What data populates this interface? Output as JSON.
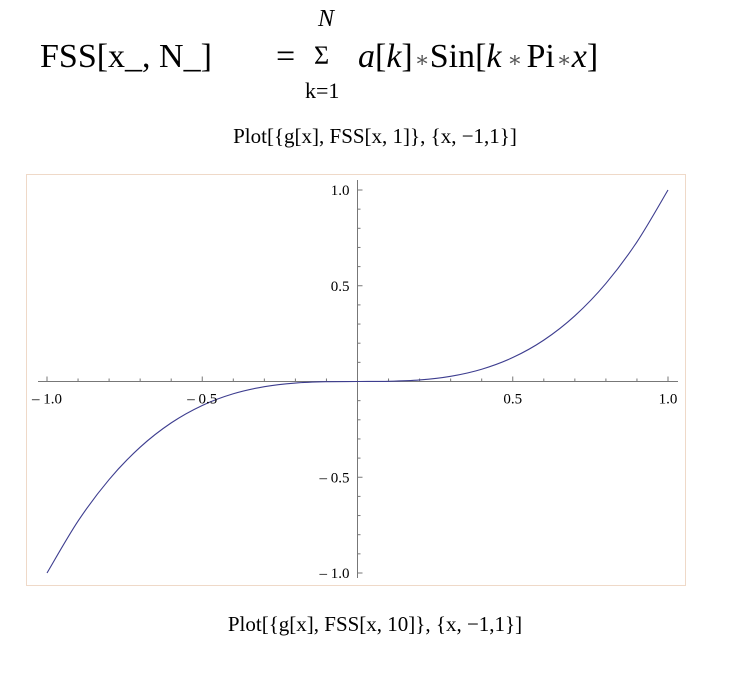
{
  "formula": {
    "lhs": "FSS[x_, N_]",
    "eq": "=",
    "sigma": "Σ",
    "upper": "N",
    "lower": "k=1",
    "a": "a",
    "k1": "k",
    "times1": "∗",
    "sin": "Sin",
    "k2": "k",
    "times2": "∗",
    "pi": "Pi",
    "times3": "∗",
    "xvar": "x"
  },
  "captions": {
    "top": "Plot[{g[x], FSS[x, 1]}, {x, −1,1}]",
    "bottom": "Plot[{g[x], FSS[x, 10]}, {x, −1,1}]"
  },
  "chart_data": {
    "type": "line",
    "title": "",
    "xlabel": "",
    "ylabel": "",
    "xlim": [
      -1,
      1
    ],
    "ylim": [
      -1,
      1
    ],
    "grid": false,
    "x_ticks": [
      {
        "value": -1.0,
        "label": "‒ 1.0"
      },
      {
        "value": -0.5,
        "label": "‒ 0.5"
      },
      {
        "value": 0.5,
        "label": "0.5"
      },
      {
        "value": 1.0,
        "label": "1.0"
      }
    ],
    "y_ticks": [
      {
        "value": 1.0,
        "label": "1.0"
      },
      {
        "value": 0.5,
        "label": "0.5"
      },
      {
        "value": -0.5,
        "label": "‒ 0.5"
      },
      {
        "value": -1.0,
        "label": "‒ 1.0"
      }
    ],
    "series": [
      {
        "color": "#3d3d8f",
        "x": [
          -1.0,
          -0.9,
          -0.8,
          -0.7,
          -0.6,
          -0.5,
          -0.4,
          -0.3,
          -0.2,
          -0.1,
          0.0,
          0.1,
          0.2,
          0.3,
          0.4,
          0.5,
          0.6,
          0.7,
          0.8,
          0.9,
          1.0
        ],
        "y": [
          -1.0,
          -0.729,
          -0.512,
          -0.343,
          -0.216,
          -0.125,
          -0.064,
          -0.027,
          -0.008,
          -0.001,
          0.0,
          0.001,
          0.008,
          0.027,
          0.064,
          0.125,
          0.216,
          0.343,
          0.512,
          0.729,
          1.0
        ]
      }
    ]
  }
}
